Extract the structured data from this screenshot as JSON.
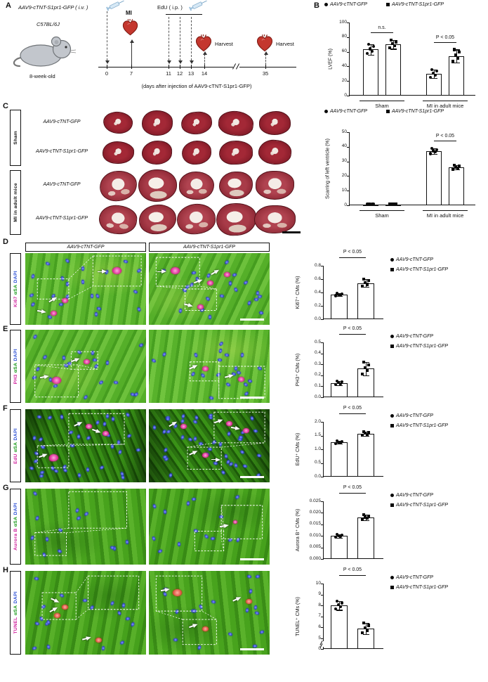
{
  "panel_labels": {
    "A": "A",
    "B": "B",
    "C": "C",
    "D": "D",
    "E": "E",
    "F": "F",
    "G": "G",
    "H": "H"
  },
  "panelA": {
    "injection_label": "AAV9-cTNT-S1pr1-GFP ( i.v. )",
    "edu_label": "EdU ( i.p. )",
    "strain": "C57BL/6J",
    "age": "8-week-old",
    "mi_label": "MI",
    "harvest_1": "Harvest",
    "harvest_2": "Harvest",
    "days": [
      "0",
      "7",
      "11",
      "12",
      "13",
      "14",
      "35"
    ],
    "caption": "(days after injection of AAV9-cTNT-S1pr1-GFP)"
  },
  "panelC": {
    "group_labels": [
      "Sham",
      "MI in adult mice"
    ],
    "row_labels": [
      "AAV9-cTNT-GFP",
      "AAV9-cTNT-S1pr1-GFP",
      "AAV9-cTNT-GFP",
      "AAV9-cTNT-S1pr1-GFP"
    ]
  },
  "micro_rows": [
    {
      "panel": "D",
      "chart": "ki67",
      "col_headers": [
        "AAV9-cTNT-GFP",
        "AAV9-cTNT-S1pr1-GFP"
      ],
      "stain": [
        {
          "text": "Ki67",
          "color": "#cf1f9c"
        },
        {
          "text": "αSA",
          "color": "#149614"
        },
        {
          "text": "DAPI",
          "color": "#2b4fd4"
        }
      ]
    },
    {
      "panel": "E",
      "chart": "ph3",
      "stain": [
        {
          "text": "PH3",
          "color": "#cf1f9c"
        },
        {
          "text": "αSA",
          "color": "#149614"
        },
        {
          "text": "DAPI",
          "color": "#2b4fd4"
        }
      ]
    },
    {
      "panel": "F",
      "chart": "edu",
      "stain": [
        {
          "text": "EdU",
          "color": "#cf1f9c"
        },
        {
          "text": "αSA",
          "color": "#149614"
        },
        {
          "text": "DAPI",
          "color": "#2b4fd4"
        }
      ]
    },
    {
      "panel": "G",
      "chart": "aurora",
      "stain": [
        {
          "text": "Aurora B",
          "color": "#cf1f9c"
        },
        {
          "text": "αSA",
          "color": "#149614"
        },
        {
          "text": "DAPI",
          "color": "#2b4fd4"
        }
      ]
    },
    {
      "panel": "H",
      "chart": "tunel",
      "stain": [
        {
          "text": "TUNEL",
          "color": "#cf1f9c"
        },
        {
          "text": "αSA",
          "color": "#149614"
        },
        {
          "text": "DAPI",
          "color": "#2b4fd4"
        }
      ]
    }
  ],
  "chart_data": [
    {
      "id": "lvef",
      "panel": "B",
      "type": "bar",
      "ylabel": "LVEF (%)",
      "ylim": [
        0,
        100
      ],
      "yticks": [
        {
          "v": 0,
          "label": "0"
        },
        {
          "v": 20,
          "label": "20"
        },
        {
          "v": 40,
          "label": "40"
        },
        {
          "v": 60,
          "label": "60"
        },
        {
          "v": 80,
          "label": "80"
        },
        {
          "v": 100,
          "label": "100"
        }
      ],
      "groups": [
        "Sham",
        "MI in adult mice"
      ],
      "series": [
        {
          "name": "AAV9-cTNT-GFP",
          "marker": "circle",
          "values": [
            63,
            30
          ],
          "errors": [
            7,
            6
          ]
        },
        {
          "name": "AAV9-cTNT-S1pr1-GFP",
          "marker": "square",
          "values": [
            70,
            54
          ],
          "errors": [
            6,
            9
          ]
        }
      ],
      "annotations": [
        {
          "text": "n.s.",
          "bars": [
            0,
            1
          ]
        },
        {
          "text": "P < 0.05",
          "bars": [
            2,
            3
          ]
        }
      ]
    },
    {
      "id": "scar",
      "panel": "B",
      "type": "bar",
      "ylabel": "Scarring of left ventricle (%)",
      "ylim": [
        0,
        50
      ],
      "yticks": [
        {
          "v": 0,
          "label": "0"
        },
        {
          "v": 10,
          "label": "10"
        },
        {
          "v": 20,
          "label": "20"
        },
        {
          "v": 30,
          "label": "30"
        },
        {
          "v": 40,
          "label": "40"
        },
        {
          "v": 50,
          "label": "50"
        }
      ],
      "groups": [
        "Sham",
        "MI in adult mice"
      ],
      "series": [
        {
          "name": "AAV9-cTNT-GFP",
          "marker": "circle",
          "values": [
            0.5,
            37
          ],
          "errors": [
            0.4,
            2
          ]
        },
        {
          "name": "AAV9-cTNT-S1pr1-GFP",
          "marker": "square",
          "values": [
            0.6,
            26
          ],
          "errors": [
            0.4,
            1.5
          ]
        }
      ],
      "annotations": [
        {
          "text": "P < 0.05",
          "bars": [
            2,
            3
          ]
        }
      ]
    },
    {
      "id": "ki67",
      "panel": "D",
      "type": "bar",
      "ylabel": "Ki67⁺ CMs (%)",
      "ylim": [
        0,
        0.8
      ],
      "yticks": [
        {
          "v": 0,
          "label": "0.0"
        },
        {
          "v": 0.2,
          "label": "0.2"
        },
        {
          "v": 0.4,
          "label": "0.4"
        },
        {
          "v": 0.6,
          "label": "0.6"
        },
        {
          "v": 0.8,
          "label": "0.8"
        }
      ],
      "series": [
        {
          "name": "AAV9-cTNT-GFP",
          "marker": "circle",
          "values": [
            0.37
          ],
          "errors": [
            0.02
          ]
        },
        {
          "name": "AAV9-cTNT-S1pr1-GFP",
          "marker": "square",
          "values": [
            0.54
          ],
          "errors": [
            0.06
          ]
        }
      ],
      "annotations": [
        {
          "text": "P < 0.05",
          "bars": [
            0,
            1
          ]
        }
      ]
    },
    {
      "id": "ph3",
      "panel": "E",
      "type": "bar",
      "ylabel": "PH3⁺ CMs (%)",
      "ylim": [
        0,
        0.5
      ],
      "yticks": [
        {
          "v": 0,
          "label": "0.0"
        },
        {
          "v": 0.1,
          "label": "0.1"
        },
        {
          "v": 0.2,
          "label": "0.2"
        },
        {
          "v": 0.3,
          "label": "0.3"
        },
        {
          "v": 0.4,
          "label": "0.4"
        },
        {
          "v": 0.5,
          "label": "0.5"
        }
      ],
      "series": [
        {
          "name": "AAV9-cTNT-GFP",
          "marker": "circle",
          "values": [
            0.13
          ],
          "errors": [
            0.02
          ]
        },
        {
          "name": "AAV9-cTNT-S1pr1-GFP",
          "marker": "square",
          "values": [
            0.26
          ],
          "errors": [
            0.06
          ]
        }
      ],
      "annotations": [
        {
          "text": "P < 0.05",
          "bars": [
            0,
            1
          ]
        }
      ]
    },
    {
      "id": "edu",
      "panel": "F",
      "type": "bar",
      "ylabel": "EdU⁺ CMs (%)",
      "ylim": [
        0,
        2
      ],
      "yticks": [
        {
          "v": 0,
          "label": "0.0"
        },
        {
          "v": 0.5,
          "label": "0.5"
        },
        {
          "v": 1,
          "label": "1.0"
        },
        {
          "v": 1.5,
          "label": "1.5"
        },
        {
          "v": 2,
          "label": "2.0"
        }
      ],
      "series": [
        {
          "name": "AAV9-cTNT-GFP",
          "marker": "circle",
          "values": [
            1.25
          ],
          "errors": [
            0.05
          ]
        },
        {
          "name": "AAV9-cTNT-S1pr1-GFP",
          "marker": "square",
          "values": [
            1.57
          ],
          "errors": [
            0.08
          ]
        }
      ],
      "annotations": [
        {
          "text": "P < 0.05",
          "bars": [
            0,
            1
          ]
        }
      ]
    },
    {
      "id": "aurora",
      "panel": "G",
      "type": "bar",
      "ylabel": "Aurora B⁺ CMs (%)",
      "ylim": [
        0,
        0.025
      ],
      "yticks": [
        {
          "v": 0,
          "label": "0.000"
        },
        {
          "v": 0.005,
          "label": "0.005"
        },
        {
          "v": 0.01,
          "label": "0.010"
        },
        {
          "v": 0.015,
          "label": "0.015"
        },
        {
          "v": 0.02,
          "label": "0.020"
        },
        {
          "v": 0.025,
          "label": "0.025"
        }
      ],
      "series": [
        {
          "name": "AAV9-cTNT-GFP",
          "marker": "circle",
          "values": [
            0.01
          ],
          "errors": [
            0.0008
          ]
        },
        {
          "name": "AAV9-cTNT-S1pr1-GFP",
          "marker": "square",
          "values": [
            0.018
          ],
          "errors": [
            0.0012
          ]
        }
      ],
      "annotations": [
        {
          "text": "P < 0.05",
          "bars": [
            0,
            1
          ]
        }
      ]
    },
    {
      "id": "tunel",
      "panel": "H",
      "type": "bar",
      "ylabel": "TUNEL⁺ CMs (%)",
      "ylim": [
        0,
        10
      ],
      "ybreak": [
        0,
        5
      ],
      "yticks": [
        {
          "v": 0,
          "label": "0"
        },
        {
          "v": 5,
          "label": "5"
        },
        {
          "v": 6,
          "label": "6"
        },
        {
          "v": 7,
          "label": "7"
        },
        {
          "v": 8,
          "label": "8"
        },
        {
          "v": 9,
          "label": "9"
        },
        {
          "v": 10,
          "label": "10"
        }
      ],
      "series": [
        {
          "name": "AAV9-cTNT-GFP",
          "marker": "circle",
          "values": [
            8
          ],
          "errors": [
            0.4
          ]
        },
        {
          "name": "AAV9-cTNT-S1pr1-GFP",
          "marker": "square",
          "values": [
            5.9
          ],
          "errors": [
            0.5
          ]
        }
      ],
      "annotations": [
        {
          "text": "P < 0.05",
          "bars": [
            0,
            1
          ]
        }
      ]
    }
  ]
}
